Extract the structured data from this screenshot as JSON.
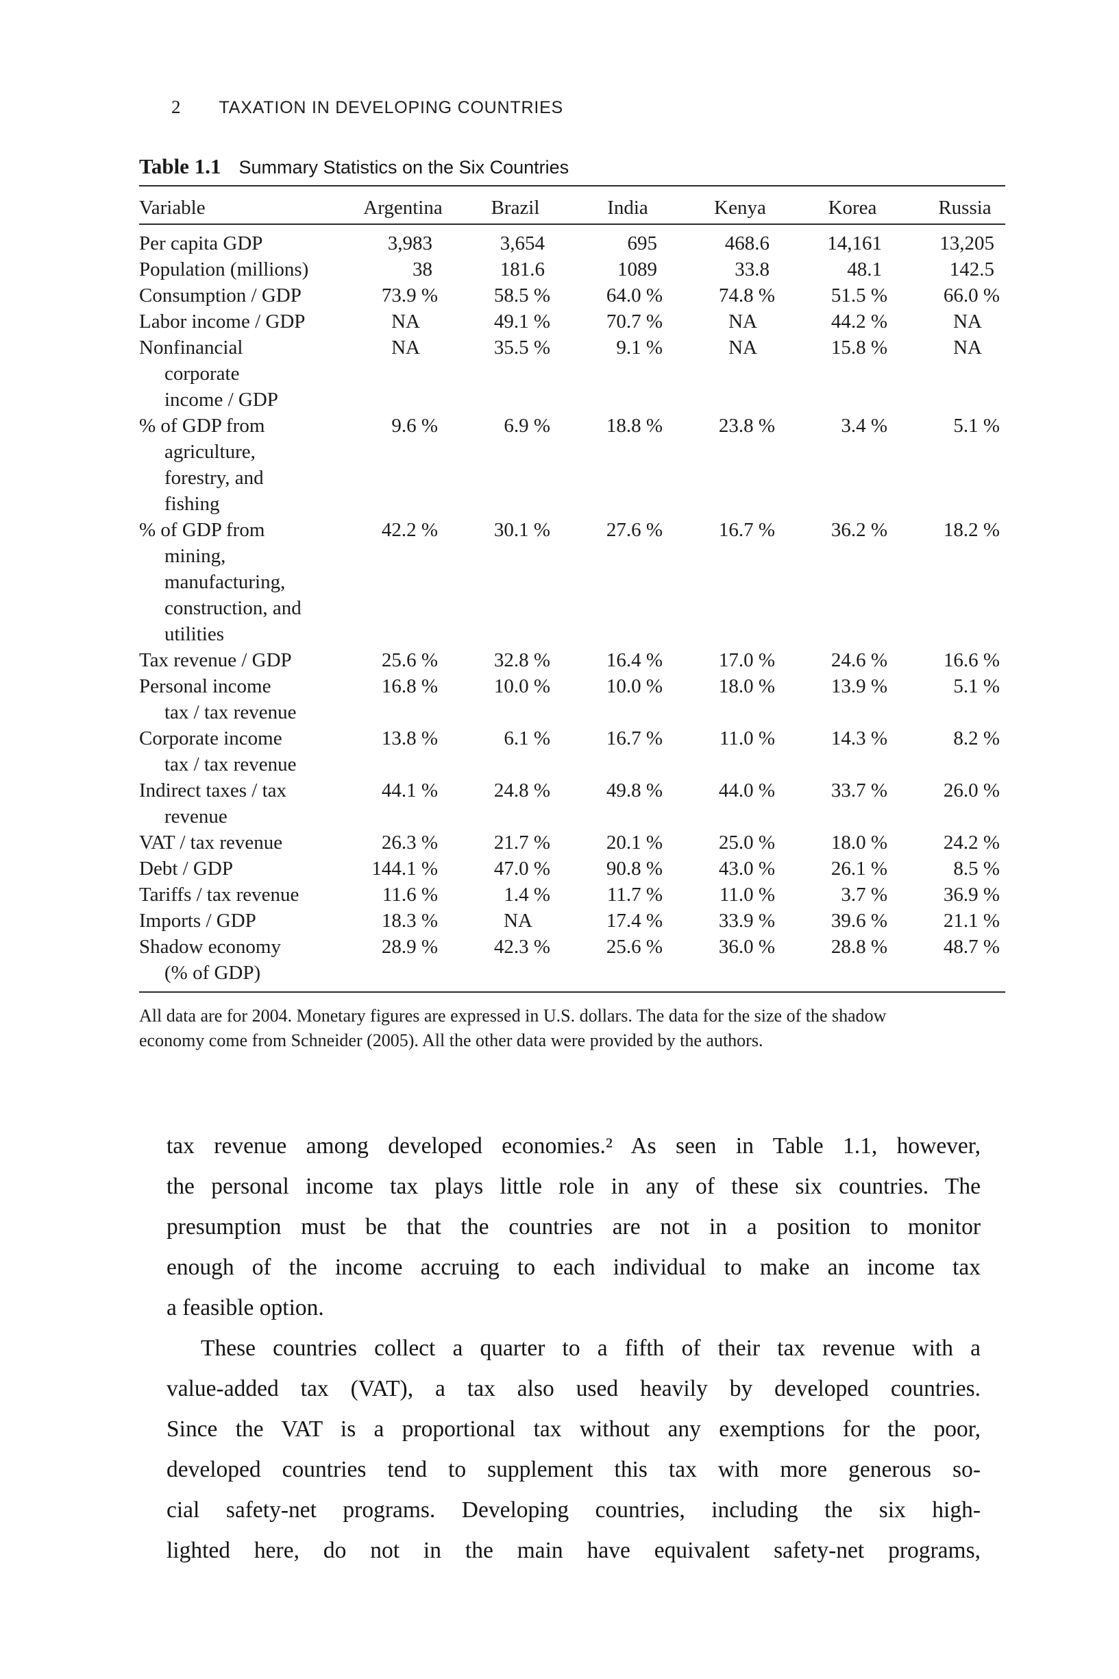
{
  "page": {
    "page_number": "2",
    "running_head": "TAXATION IN DEVELOPING COUNTRIES"
  },
  "table": {
    "label": "Table 1.1",
    "caption": "Summary Statistics on the Six Countries",
    "columns": [
      "Variable",
      "Argentina",
      "Brazil",
      "India",
      "Kenya",
      "Korea",
      "Russia"
    ],
    "rows": [
      {
        "label_lines": [
          "Per capita GDP"
        ],
        "values": [
          "3,983",
          "3,654",
          "695",
          "468.6",
          "14,161",
          "13,205"
        ]
      },
      {
        "label_lines": [
          "Population (millions)"
        ],
        "values": [
          "38",
          "181.6",
          "1089",
          "33.8",
          "48.1",
          "142.5"
        ]
      },
      {
        "label_lines": [
          "Consumption / GDP"
        ],
        "values": [
          "73.9 %",
          "58.5 %",
          "64.0 %",
          "74.8 %",
          "51.5 %",
          "66.0 %"
        ]
      },
      {
        "label_lines": [
          "Labor income / GDP"
        ],
        "values": [
          "NA",
          "49.1 %",
          "70.7 %",
          "NA",
          "44.2 %",
          "NA"
        ]
      },
      {
        "label_lines": [
          "Nonfinancial",
          "corporate",
          "income / GDP"
        ],
        "values": [
          "NA",
          "35.5 %",
          "9.1 %",
          "NA",
          "15.8 %",
          "NA"
        ]
      },
      {
        "label_lines": [
          "% of GDP from",
          "agriculture,",
          "forestry, and",
          "fishing"
        ],
        "values": [
          "9.6 %",
          "6.9 %",
          "18.8 %",
          "23.8 %",
          "3.4 %",
          "5.1 %"
        ]
      },
      {
        "label_lines": [
          "% of GDP from",
          "mining,",
          "manufacturing,",
          "construction, and",
          "utilities"
        ],
        "values": [
          "42.2 %",
          "30.1 %",
          "27.6 %",
          "16.7 %",
          "36.2 %",
          "18.2 %"
        ]
      },
      {
        "label_lines": [
          "Tax revenue / GDP"
        ],
        "values": [
          "25.6 %",
          "32.8 %",
          "16.4 %",
          "17.0 %",
          "24.6 %",
          "16.6 %"
        ]
      },
      {
        "label_lines": [
          "Personal income",
          "tax / tax revenue"
        ],
        "values": [
          "16.8 %",
          "10.0 %",
          "10.0 %",
          "18.0 %",
          "13.9 %",
          "5.1 %"
        ]
      },
      {
        "label_lines": [
          "Corporate income",
          "tax / tax revenue"
        ],
        "values": [
          "13.8 %",
          "6.1 %",
          "16.7 %",
          "11.0 %",
          "14.3 %",
          "8.2 %"
        ]
      },
      {
        "label_lines": [
          "Indirect taxes / tax",
          "revenue"
        ],
        "values": [
          "44.1 %",
          "24.8 %",
          "49.8 %",
          "44.0 %",
          "33.7 %",
          "26.0 %"
        ]
      },
      {
        "label_lines": [
          "VAT / tax revenue"
        ],
        "values": [
          "26.3 %",
          "21.7 %",
          "20.1 %",
          "25.0 %",
          "18.0 %",
          "24.2 %"
        ]
      },
      {
        "label_lines": [
          "Debt / GDP"
        ],
        "values": [
          "144.1 %",
          "47.0 %",
          "90.8 %",
          "43.0 %",
          "26.1 %",
          "8.5 %"
        ]
      },
      {
        "label_lines": [
          "Tariffs / tax revenue"
        ],
        "values": [
          "11.6 %",
          "1.4 %",
          "11.7 %",
          "11.0 %",
          "3.7 %",
          "36.9 %"
        ]
      },
      {
        "label_lines": [
          "Imports / GDP"
        ],
        "values": [
          "18.3 %",
          "NA",
          "17.4 %",
          "33.9 %",
          "39.6 %",
          "21.1 %"
        ]
      },
      {
        "label_lines": [
          "Shadow economy",
          "(% of GDP)"
        ],
        "values": [
          "28.9 %",
          "42.3 %",
          "25.6 %",
          "36.0 %",
          "28.8 %",
          "48.7 %"
        ]
      }
    ],
    "footnote_lines": [
      "All data are for 2004. Monetary figures are expressed in U.S. dollars. The data for the size of the shadow",
      "economy come from Schneider (2005). All the other data were provided by the authors."
    ]
  },
  "body": {
    "paragraphs": [
      {
        "first_line_indent": false,
        "justify_last": false,
        "lines": [
          "tax revenue among developed economies.² As seen in Table 1.1, however,",
          "the personal income tax plays little role in any of these six countries. The",
          "presumption must be that the countries are not in a position to monitor",
          "enough of the income accruing to each individual to make an income tax",
          "a feasible option."
        ]
      },
      {
        "first_line_indent": true,
        "justify_last": true,
        "lines": [
          "These countries collect a quarter to a fifth of their tax revenue with a",
          "value-added tax (VAT), a tax also used heavily by developed countries.",
          "Since the VAT is a proportional tax without any exemptions for the poor,",
          "developed countries tend to supplement this tax with more generous so-",
          "cial safety-net programs. Developing countries, including the six high-",
          "lighted here, do not in the main have equivalent safety-net programs,"
        ]
      }
    ]
  }
}
